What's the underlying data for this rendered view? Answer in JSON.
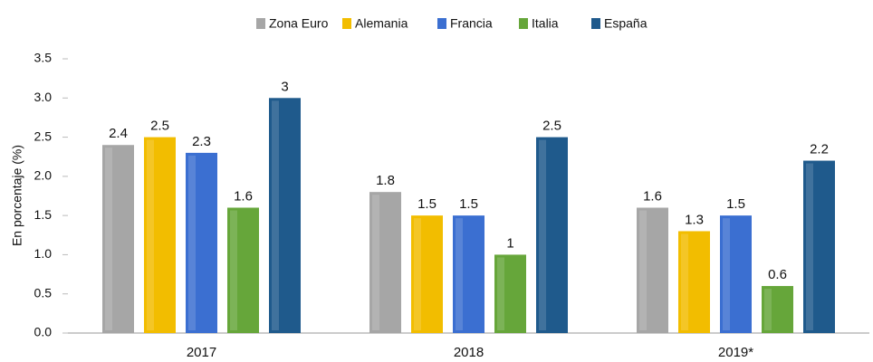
{
  "chart_data": {
    "type": "bar",
    "y_label": "En porcentaje (%)",
    "categories": [
      "2017",
      "2018",
      "2019*"
    ],
    "series": [
      {
        "name": "Zona Euro",
        "color": "#a6a6a6",
        "values": [
          2.4,
          1.8,
          1.6
        ]
      },
      {
        "name": "Alemania",
        "color": "#f2bd00",
        "values": [
          2.5,
          1.5,
          1.3
        ]
      },
      {
        "name": "Francia",
        "color": "#3b6fd1",
        "values": [
          2.3,
          1.5,
          1.5
        ]
      },
      {
        "name": "Italia",
        "color": "#66a63a",
        "values": [
          1.6,
          1,
          0.6
        ]
      },
      {
        "name": "España",
        "color": "#1f5a8c",
        "values": [
          3,
          2.5,
          2.2
        ]
      }
    ],
    "ylim": [
      0,
      3.5
    ],
    "yticks": [
      {
        "value": 0,
        "label": "0.0"
      },
      0.5,
      {
        "value": 1,
        "label": "1.0"
      },
      1.5,
      {
        "value": 2,
        "label": "2.0"
      },
      2.5,
      {
        "value": 3,
        "label": "3.0"
      },
      3.5
    ],
    "grid": false,
    "legend": "top"
  }
}
